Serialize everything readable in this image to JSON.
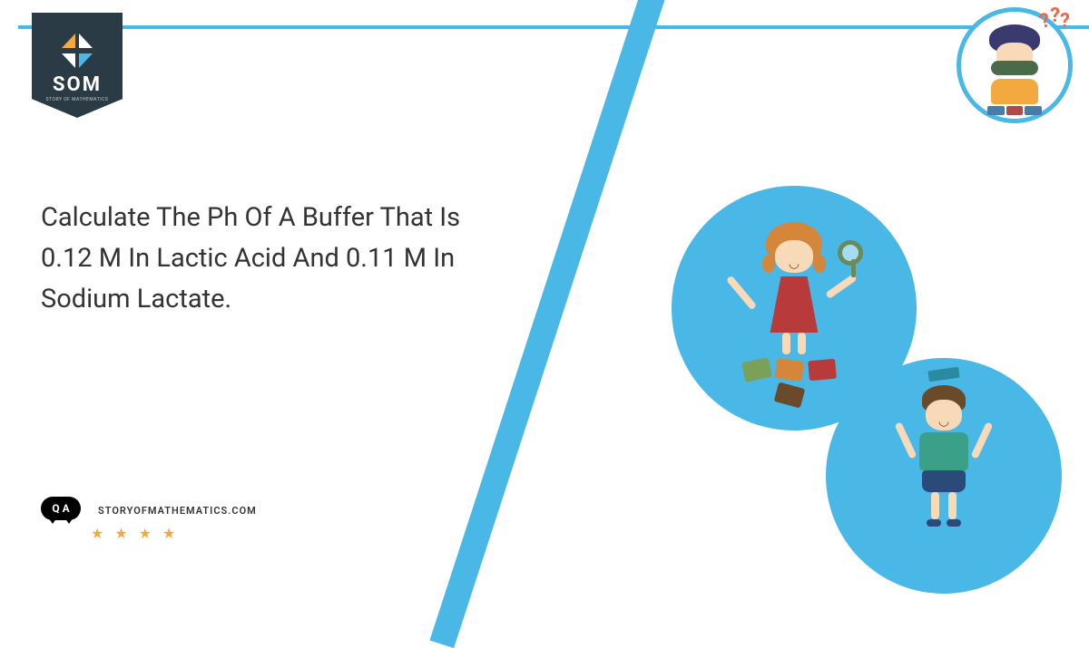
{
  "logo": {
    "text": "SOM",
    "subtitle": "STORY OF MATHEMATICS"
  },
  "title": "Calculate The Ph Of A Buffer That Is 0.12 M In Lactic Acid And 0.11 M In Sodium Lactate.",
  "footer": {
    "qa_label": "Q A",
    "url": "STORYOFMATHEMATICS.COM",
    "stars": "★ ★ ★ ★"
  },
  "colors": {
    "accent": "#4ab8e6",
    "badge": "#2b3b45",
    "star": "#f4a940"
  }
}
